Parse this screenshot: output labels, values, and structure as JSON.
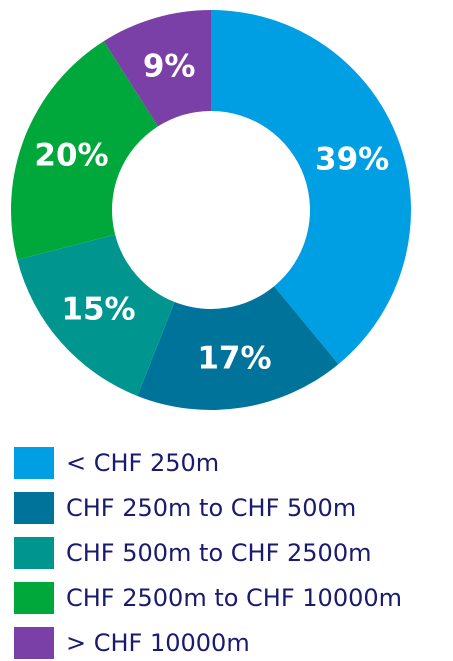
{
  "chart_data": {
    "type": "donut",
    "categories": [
      "< CHF 250m",
      "CHF 250m to CHF 500m",
      "CHF 500m to CHF 2500m",
      "CHF 2500m to CHF 10000m",
      "> CHF 10000m"
    ],
    "values": [
      39,
      17,
      15,
      20,
      9
    ],
    "value_labels": [
      "39%",
      "17%",
      "15%",
      "20%",
      "9%"
    ],
    "colors": [
      "#009fe3",
      "#00739a",
      "#00968f",
      "#00a83c",
      "#7b3fa8"
    ]
  }
}
